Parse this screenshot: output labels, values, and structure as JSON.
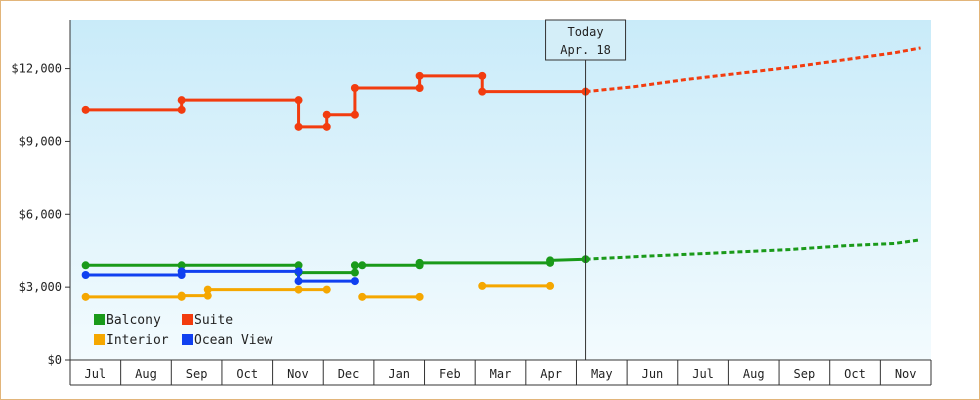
{
  "chart_data": {
    "type": "line",
    "x_tick_labels": [
      "Jul",
      "Aug",
      "Sep",
      "Oct",
      "Nov",
      "Dec",
      "Jan",
      "Feb",
      "Mar",
      "Apr",
      "May",
      "Jun",
      "Jul",
      "Aug",
      "Sep",
      "Oct",
      "Nov"
    ],
    "y_ticks": [
      0,
      3000,
      6000,
      9000,
      12000
    ],
    "y_tick_labels": [
      "$0",
      "$3,000",
      "$6,000",
      "$9,000",
      "$12,000"
    ],
    "ylim": [
      0,
      14000
    ],
    "xlim": [
      0,
      16
    ],
    "today": {
      "line1": "Today",
      "line2": "Apr. 18",
      "x": 9.58
    },
    "legend": [
      {
        "name": "Balcony",
        "color": "#1a9a1a"
      },
      {
        "name": "Suite",
        "color": "#f23c0f"
      },
      {
        "name": "Interior",
        "color": "#f5a700"
      },
      {
        "name": "Ocean View",
        "color": "#1040f0"
      }
    ],
    "series": [
      {
        "name": "Suite",
        "color": "#f23c0f",
        "segments": [
          [
            [
              0.0,
              10300
            ],
            [
              1.84,
              10300
            ],
            [
              1.84,
              10700
            ],
            [
              4.08,
              10700
            ],
            [
              4.08,
              9600
            ],
            [
              4.62,
              9600
            ],
            [
              4.62,
              10100
            ],
            [
              5.16,
              10100
            ],
            [
              5.16,
              11200
            ],
            [
              6.4,
              11200
            ],
            [
              6.4,
              11700
            ],
            [
              7.6,
              11700
            ],
            [
              7.6,
              11050
            ],
            [
              9.58,
              11050
            ]
          ]
        ],
        "points": [
          [
            0.0,
            10300
          ],
          [
            1.84,
            10300
          ],
          [
            1.84,
            10700
          ],
          [
            4.08,
            10700
          ],
          [
            4.08,
            9600
          ],
          [
            4.62,
            9600
          ],
          [
            4.62,
            10100
          ],
          [
            5.16,
            10100
          ],
          [
            5.16,
            11200
          ],
          [
            6.4,
            11200
          ],
          [
            6.4,
            11700
          ],
          [
            7.6,
            11700
          ],
          [
            7.6,
            11050
          ],
          [
            9.58,
            11050
          ]
        ],
        "forecast": [
          [
            9.58,
            11050
          ],
          [
            10.5,
            11250
          ],
          [
            11.5,
            11550
          ],
          [
            12.5,
            11800
          ],
          [
            13.5,
            12050
          ],
          [
            14.5,
            12350
          ],
          [
            15.5,
            12650
          ],
          [
            16.0,
            12850
          ]
        ]
      },
      {
        "name": "Balcony",
        "color": "#1a9a1a",
        "segments": [
          [
            [
              0.0,
              3900
            ],
            [
              4.08,
              3900
            ],
            [
              4.08,
              3600
            ],
            [
              5.16,
              3600
            ],
            [
              5.16,
              3900
            ],
            [
              9.58,
              3900
            ]
          ]
        ],
        "points": [
          [
            0.0,
            3900
          ],
          [
            1.84,
            3900
          ],
          [
            4.08,
            3900
          ],
          [
            4.08,
            3600
          ],
          [
            5.16,
            3600
          ],
          [
            5.16,
            3900
          ],
          [
            5.3,
            3900
          ],
          [
            6.4,
            3900
          ],
          [
            6.4,
            4000
          ],
          [
            8.9,
            4000
          ],
          [
            8.9,
            4100
          ],
          [
            9.58,
            4150
          ]
        ],
        "line_override": [
          [
            0.0,
            3900
          ],
          [
            4.08,
            3900
          ],
          [
            4.08,
            3600
          ],
          [
            5.16,
            3600
          ],
          [
            5.16,
            3900
          ],
          [
            6.4,
            3900
          ],
          [
            6.4,
            4000
          ],
          [
            8.9,
            4000
          ],
          [
            8.9,
            4100
          ],
          [
            9.58,
            4150
          ]
        ],
        "forecast": [
          [
            9.58,
            4150
          ],
          [
            10.5,
            4250
          ],
          [
            11.5,
            4350
          ],
          [
            12.5,
            4450
          ],
          [
            13.5,
            4550
          ],
          [
            14.5,
            4700
          ],
          [
            15.5,
            4800
          ],
          [
            16.0,
            4950
          ]
        ]
      },
      {
        "name": "Ocean View",
        "color": "#1040f0",
        "segments": [
          [
            [
              0.0,
              3500
            ],
            [
              1.84,
              3500
            ],
            [
              1.84,
              3650
            ],
            [
              4.08,
              3650
            ],
            [
              4.08,
              3250
            ],
            [
              5.16,
              3250
            ]
          ]
        ],
        "points": [
          [
            0.0,
            3500
          ],
          [
            1.84,
            3500
          ],
          [
            1.84,
            3650
          ],
          [
            4.08,
            3650
          ],
          [
            4.08,
            3250
          ],
          [
            5.16,
            3250
          ]
        ],
        "forecast": []
      },
      {
        "name": "Interior",
        "color": "#f5a700",
        "segments": [
          [
            [
              0.0,
              2600
            ],
            [
              1.84,
              2600
            ],
            [
              1.84,
              2650
            ],
            [
              2.34,
              2650
            ],
            [
              2.34,
              2900
            ],
            [
              4.62,
              2900
            ]
          ],
          [
            [
              5.3,
              2600
            ],
            [
              6.4,
              2600
            ]
          ],
          [
            [
              7.6,
              3050
            ],
            [
              8.9,
              3050
            ]
          ]
        ],
        "points": [
          [
            0.0,
            2600
          ],
          [
            1.84,
            2600
          ],
          [
            1.84,
            2650
          ],
          [
            2.34,
            2650
          ],
          [
            2.34,
            2900
          ],
          [
            4.08,
            2900
          ],
          [
            4.62,
            2900
          ],
          [
            5.3,
            2600
          ],
          [
            6.4,
            2600
          ],
          [
            7.6,
            3050
          ],
          [
            8.9,
            3050
          ]
        ],
        "forecast": []
      }
    ]
  }
}
